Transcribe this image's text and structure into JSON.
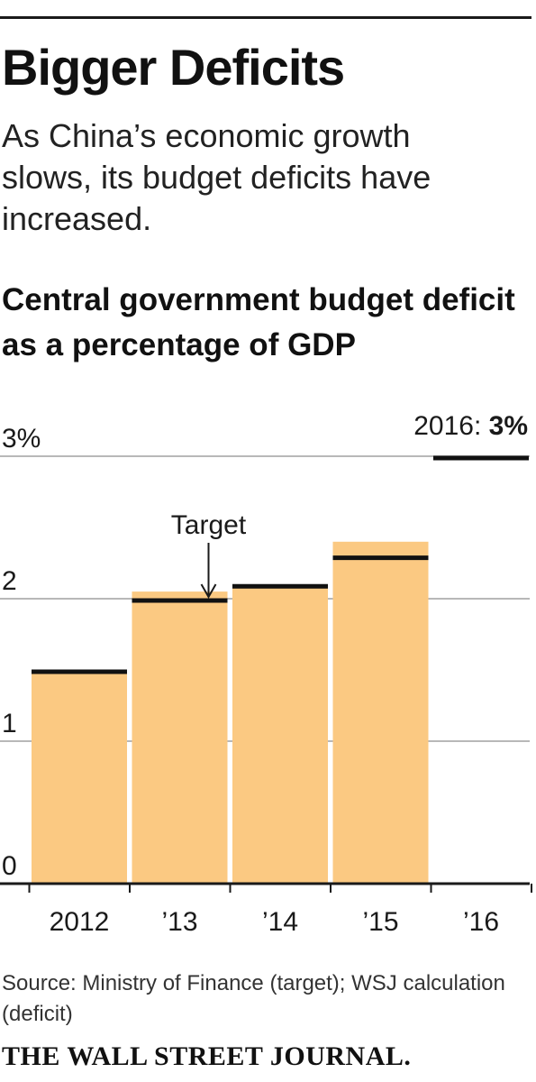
{
  "headline": "Bigger Deficits",
  "dek": "As China’s economic growth slows, its budget deficits have increased.",
  "source": "Source: Ministry of Finance (target); WSJ calculation (deficit)",
  "brand": "THE WALL STREET JOURNAL.",
  "colors": {
    "bar": "#fbc982",
    "target": "#111111",
    "grid": "#b8b8b8",
    "text": "#1a1a1a"
  },
  "chart_data": {
    "type": "bar",
    "title": "Central government budget deficit as a percentage of GDP",
    "categories": [
      "2012",
      "’13",
      "’14",
      "’15",
      "’16"
    ],
    "series": [
      {
        "name": "deficit",
        "values": [
          1.5,
          2.05,
          2.1,
          2.4,
          null
        ]
      },
      {
        "name": "target",
        "values": [
          1.5,
          2.0,
          2.1,
          2.3,
          3.0
        ]
      }
    ],
    "yticks": [
      "0",
      "1",
      "2",
      "3%"
    ],
    "ylim": [
      0,
      3
    ],
    "grid": true,
    "annotations": {
      "target_label": "Target",
      "callout_prefix": "2016: ",
      "callout_value": "3%"
    }
  }
}
